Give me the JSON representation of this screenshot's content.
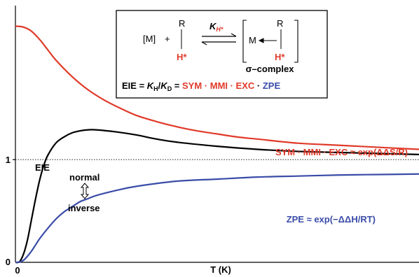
{
  "chart_data": {
    "type": "line",
    "xlabel": "T (K)",
    "ylabel": "",
    "x_tick_labels": [
      "0"
    ],
    "y_tick_labels": [
      "0",
      "1"
    ],
    "xlim": [
      0,
      100
    ],
    "ylim": [
      0,
      2.5
    ],
    "reference_line": {
      "y": 1,
      "style": "dotted"
    },
    "series": [
      {
        "name": "SYM · MMI · EXC ≈ exp(ΔΔS/R)",
        "color": "#e03a2a",
        "x": [
          0,
          2,
          4,
          6,
          8,
          10,
          14,
          18,
          22,
          26,
          30,
          35,
          40,
          45,
          50,
          55,
          60,
          70,
          80,
          90,
          100
        ],
        "y": [
          2.3,
          2.29,
          2.25,
          2.17,
          2.07,
          1.97,
          1.81,
          1.68,
          1.58,
          1.5,
          1.43,
          1.37,
          1.32,
          1.28,
          1.25,
          1.22,
          1.2,
          1.16,
          1.14,
          1.12,
          1.1
        ]
      },
      {
        "name": "EIE",
        "color": "#000000",
        "x": [
          0,
          1,
          2,
          3,
          4,
          5,
          6,
          7,
          8,
          10,
          12,
          14,
          16,
          18,
          20,
          25,
          30,
          35,
          40,
          50,
          60,
          70,
          80,
          90,
          100
        ],
        "y": [
          0,
          0.005,
          0.08,
          0.22,
          0.42,
          0.62,
          0.8,
          0.94,
          1.04,
          1.16,
          1.22,
          1.26,
          1.28,
          1.29,
          1.29,
          1.27,
          1.24,
          1.2,
          1.17,
          1.13,
          1.1,
          1.08,
          1.07,
          1.06,
          1.05
        ]
      },
      {
        "name": "ZPE ≈ exp(−ΔΔH/RT)",
        "color": "#3a4ca8",
        "x": [
          0,
          1,
          2,
          3,
          4,
          5,
          6,
          8,
          10,
          12,
          14,
          16,
          18,
          20,
          25,
          30,
          40,
          50,
          60,
          70,
          80,
          90,
          100
        ],
        "y": [
          0,
          0.003,
          0.02,
          0.06,
          0.11,
          0.17,
          0.23,
          0.33,
          0.42,
          0.49,
          0.54,
          0.59,
          0.62,
          0.65,
          0.7,
          0.74,
          0.79,
          0.81,
          0.83,
          0.84,
          0.85,
          0.855,
          0.86
        ]
      }
    ],
    "annotations": {
      "normal": "normal",
      "inverse": "inverse"
    }
  },
  "inset": {
    "metal": "[M]",
    "plus": "+",
    "R": "R",
    "H": "H*",
    "K": "K",
    "K_sub": "H*",
    "complex_M": "M",
    "complex_R": "R",
    "complex_H": "H*",
    "complex_label": "σ–complex",
    "eq_prefix": "EIE = ",
    "eq_KH": "K",
    "eq_KH_sub": "H",
    "eq_slash": "/",
    "eq_KD": "K",
    "eq_KD_sub": "D",
    "eq_eq": " = ",
    "eq_terms": "SYM · MMI · EXC",
    "eq_dot": " · ",
    "eq_zpe": "ZPE"
  },
  "colors": {
    "red": "#e03a2a",
    "blue": "#3a4ca8",
    "black": "#000000"
  }
}
